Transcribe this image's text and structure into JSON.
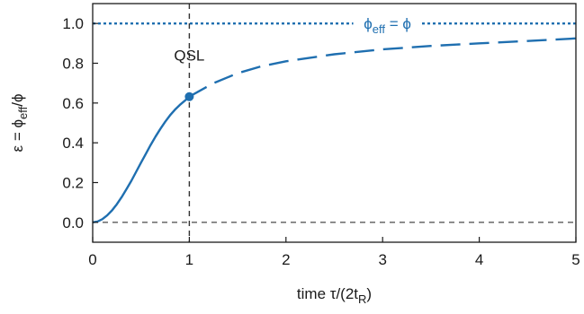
{
  "chart_data": {
    "type": "line",
    "xlabel": "time τ/(2t",
    "xlabel_sub": "R",
    "xlabel_close": ")",
    "ylabel": "ε = ϕ",
    "ylabel_sub": "eff",
    "ylabel_tail": "/ϕ",
    "xlim": [
      0,
      5
    ],
    "ylim": [
      -0.1,
      1.1
    ],
    "x_ticks": [
      "0",
      "1",
      "2",
      "3",
      "4",
      "5"
    ],
    "y_ticks": [
      "0.0",
      "0.2",
      "0.4",
      "0.6",
      "0.8",
      "1.0"
    ],
    "grid": false,
    "colors": {
      "series": "#1f6fb0",
      "reference": "#5a5a5a"
    },
    "series": [
      {
        "style": "solid",
        "x": [
          0,
          0.05,
          0.1,
          0.15,
          0.2,
          0.25,
          0.3,
          0.35,
          0.4,
          0.45,
          0.5,
          0.55,
          0.6,
          0.65,
          0.7,
          0.75,
          0.8,
          0.85,
          0.9,
          0.95,
          1.0
        ],
        "y": [
          0,
          0.004,
          0.016,
          0.035,
          0.06,
          0.091,
          0.127,
          0.167,
          0.209,
          0.254,
          0.3,
          0.345,
          0.389,
          0.431,
          0.47,
          0.506,
          0.538,
          0.566,
          0.59,
          0.61,
          0.632
        ]
      },
      {
        "style": "dashed",
        "x": [
          1.0,
          1.25,
          1.5,
          1.75,
          2.0,
          2.5,
          3.0,
          3.5,
          4.0,
          4.5,
          5.0
        ],
        "y": [
          0.632,
          0.7,
          0.75,
          0.785,
          0.81,
          0.845,
          0.87,
          0.887,
          0.9,
          0.912,
          0.925
        ]
      }
    ],
    "reference_lines": [
      {
        "axis": "y",
        "value": 1.0,
        "label": "ϕ",
        "label_sub": "eff",
        "label_tail": " = ϕ",
        "style": "dotted",
        "color": "#1f6fb0"
      },
      {
        "axis": "y",
        "value": 0.0,
        "style": "dashed",
        "color": "#5a5a5a"
      },
      {
        "axis": "x",
        "value": 1.0,
        "style": "dashed",
        "color": "#333333"
      }
    ],
    "marker": {
      "x": 1.0,
      "y": 0.632
    },
    "annotations": [
      {
        "text": "QSL",
        "x": 1.0,
        "y": 0.84
      }
    ]
  }
}
